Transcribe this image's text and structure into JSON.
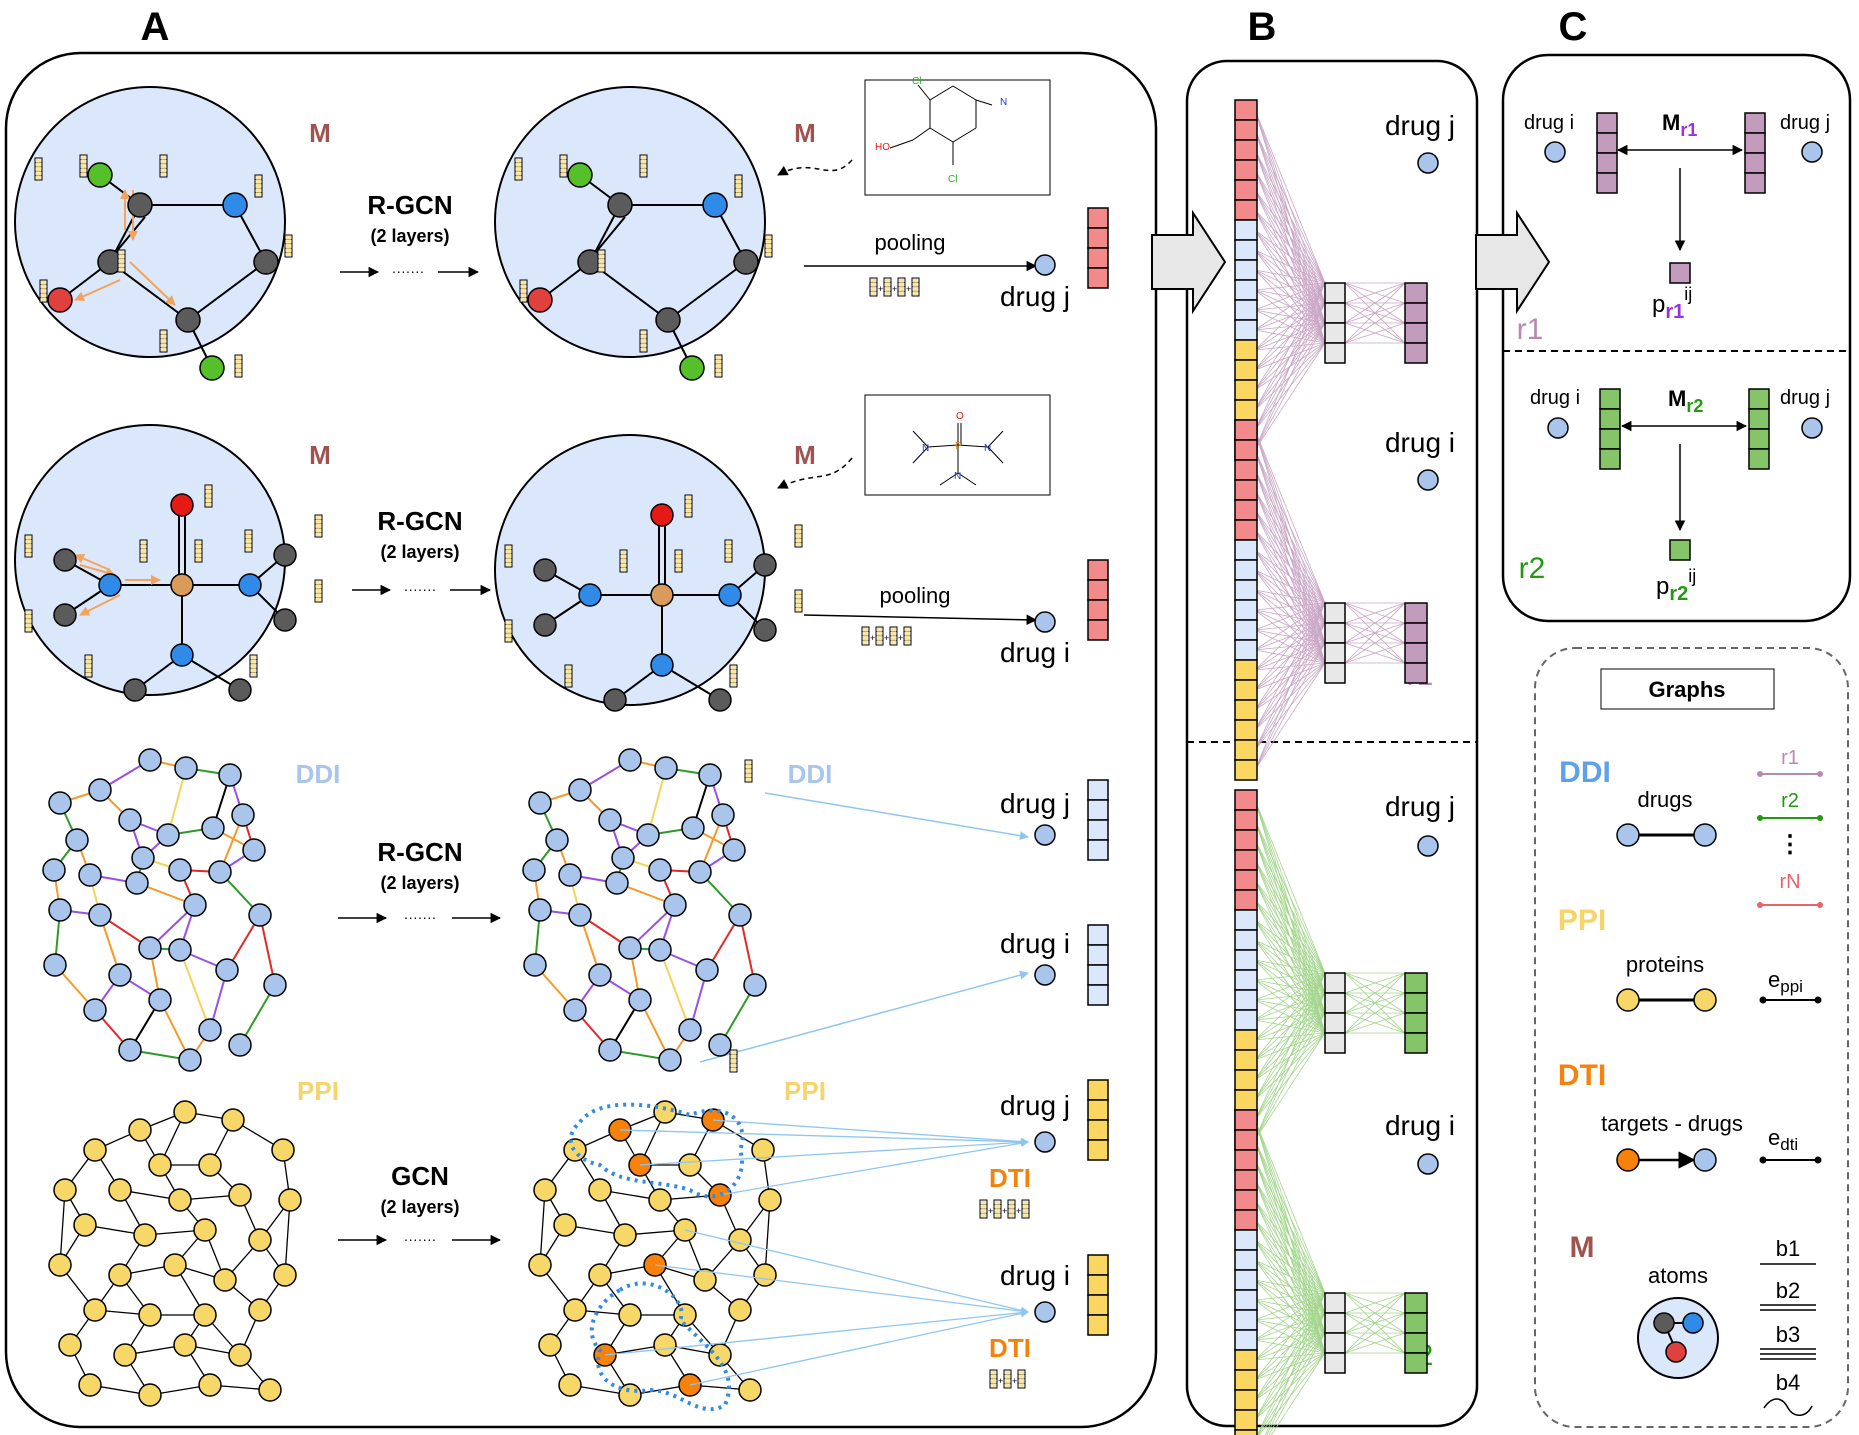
{
  "panel_labels": {
    "a": "A",
    "b": "B",
    "c": "C"
  },
  "colors": {
    "molecule_fill": "#dbe7fb",
    "atom_dark": "#5b5b5b",
    "atom_blue": "#2f8ae8",
    "atom_green": "#56c02b",
    "atom_red": "#e0403e",
    "atom_orange": "#d99a5a",
    "atom_oxygen_red": "#e31b14",
    "drug_node": "#a9c5ec",
    "protein_node": "#f8d769",
    "target_node": "#f6820c",
    "emb_red": "#f2898b",
    "emb_blue": "#dbe7fa",
    "emb_yellow": "#fbd660",
    "emb_purple": "#c39bbd",
    "emb_green": "#86c46a",
    "emb_gray": "#e8e8e8",
    "label_m": "#a0524f",
    "label_ddi": "#a9c5ec",
    "label_ppi": "#f7d46a",
    "label_dti": "#f6820c",
    "r1": "#b58bb0",
    "r2": "#229a10",
    "rN": "#e8636a",
    "ddi_legend": "#5fa0e8",
    "r1_sub": "#9b2fe8"
  },
  "panel_a": {
    "rows": [
      {
        "graph_label": "M",
        "method": "R-GCN",
        "layers": "(2 layers)",
        "op": "pooling",
        "drug": "drug j",
        "emb_color": "red"
      },
      {
        "graph_label": "M",
        "method": "R-GCN",
        "layers": "(2 layers)",
        "op": "pooling",
        "drug": "drug i",
        "emb_color": "red"
      },
      {
        "graph_label": "DDI",
        "method": "R-GCN",
        "layers": "(2 layers)",
        "drugs": [
          "drug j",
          "drug i"
        ],
        "emb_color": "blue"
      },
      {
        "graph_label": "PPI",
        "method": "GCN",
        "layers": "(2 layers)",
        "drugs": [
          "drug j",
          "drug i"
        ],
        "op": "DTI",
        "emb_color": "yellow"
      }
    ],
    "ellipsis": "·······",
    "structure1": {
      "atom_labels": [
        "Cl",
        "N",
        "HO",
        "Cl"
      ]
    },
    "structure2": {
      "atom_labels": [
        "O",
        "P",
        "N",
        "N",
        "N"
      ]
    }
  },
  "panel_b": {
    "blocks": [
      {
        "drug": "drug j",
        "relation": "r1"
      },
      {
        "drug": "drug i",
        "relation": "r1"
      },
      {
        "drug": "drug j",
        "relation": "r2"
      },
      {
        "drug": "drug i",
        "relation": "r2"
      }
    ]
  },
  "panel_c": {
    "sections": [
      {
        "relation": "r1",
        "drug_left": "drug i",
        "drug_right": "drug j",
        "matrix": "M",
        "matrix_sub": "r1",
        "output": "p",
        "output_sub": "r1",
        "output_sup": "ij"
      },
      {
        "relation": "r2",
        "drug_left": "drug i",
        "drug_right": "drug j",
        "matrix": "M",
        "matrix_sub": "r2",
        "output": "p",
        "output_sub": "r2",
        "output_sup": "ij"
      }
    ]
  },
  "legend": {
    "title": "Graphs",
    "ddi": {
      "label": "DDI",
      "caption": "drugs",
      "relations": [
        "r1",
        "r2",
        "⋮",
        "rN"
      ]
    },
    "ppi": {
      "label": "PPI",
      "caption": "proteins",
      "edge": "e",
      "edge_sub": "ppi"
    },
    "dti": {
      "label": "DTI",
      "caption": "targets - drugs",
      "edge": "e",
      "edge_sub": "dti"
    },
    "m": {
      "label": "M",
      "caption": "atoms",
      "bonds": [
        "b1",
        "b2",
        "b3",
        "b4"
      ]
    }
  }
}
